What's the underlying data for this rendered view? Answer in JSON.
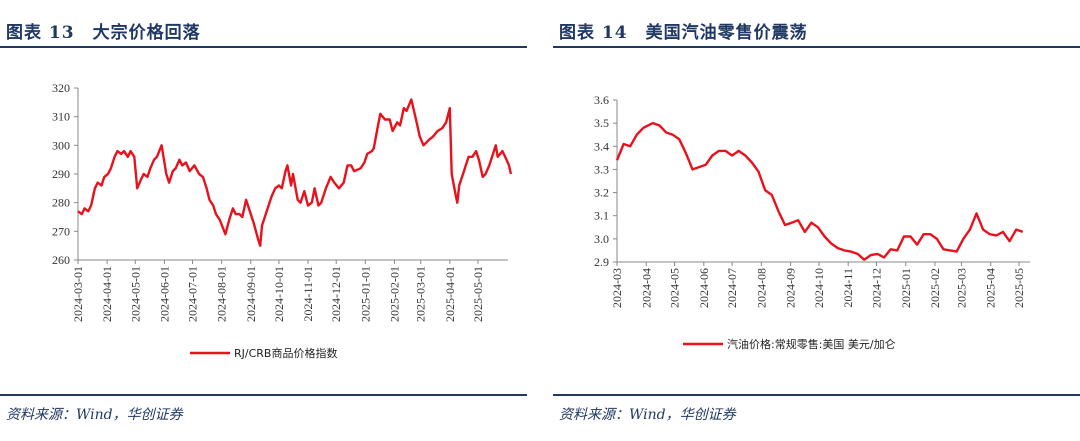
{
  "left": {
    "title": "图表 13　大宗价格回落",
    "source": "资料来源：Wind，华创证券"
  },
  "right": {
    "title": "图表 14　美国汽油零售价震荡",
    "source": "资料来源：Wind，华创证券"
  },
  "colors": {
    "line": "#e8121c",
    "title": "#1f3864"
  },
  "chart_data": [
    {
      "type": "line",
      "title": "",
      "xlabel": "",
      "ylabel": "",
      "ylim": [
        260,
        320
      ],
      "yticks": [
        260,
        270,
        280,
        290,
        300,
        310,
        320
      ],
      "xticks": [
        "2024-03-01",
        "2024-04-01",
        "2024-05-01",
        "2024-06-01",
        "2024-07-01",
        "2024-08-01",
        "2024-09-01",
        "2024-10-01",
        "2024-11-01",
        "2024-12-01",
        "2025-01-01",
        "2025-02-01",
        "2025-03-01",
        "2025-04-01",
        "2025-05-01"
      ],
      "grid": false,
      "legend": "bottom",
      "series": [
        {
          "name": "RJ/CRB商品价格指数",
          "points": [
            [
              "2024-03-01",
              277
            ],
            [
              "2024-03-05",
              276
            ],
            [
              "2024-03-08",
              278
            ],
            [
              "2024-03-12",
              277
            ],
            [
              "2024-03-15",
              279
            ],
            [
              "2024-03-19",
              285
            ],
            [
              "2024-03-22",
              287
            ],
            [
              "2024-03-26",
              286
            ],
            [
              "2024-03-29",
              289
            ],
            [
              "2024-04-02",
              290
            ],
            [
              "2024-04-05",
              292
            ],
            [
              "2024-04-09",
              296
            ],
            [
              "2024-04-12",
              298
            ],
            [
              "2024-04-16",
              297
            ],
            [
              "2024-04-19",
              298
            ],
            [
              "2024-04-23",
              296
            ],
            [
              "2024-04-26",
              298
            ],
            [
              "2024-04-30",
              296
            ],
            [
              "2024-05-03",
              285
            ],
            [
              "2024-05-07",
              288
            ],
            [
              "2024-05-10",
              290
            ],
            [
              "2024-05-14",
              289
            ],
            [
              "2024-05-17",
              292
            ],
            [
              "2024-05-21",
              295
            ],
            [
              "2024-05-24",
              296
            ],
            [
              "2024-05-29",
              300
            ],
            [
              "2024-06-03",
              290
            ],
            [
              "2024-06-06",
              287
            ],
            [
              "2024-06-10",
              291
            ],
            [
              "2024-06-13",
              292
            ],
            [
              "2024-06-17",
              295
            ],
            [
              "2024-06-20",
              293
            ],
            [
              "2024-06-24",
              294
            ],
            [
              "2024-06-28",
              291
            ],
            [
              "2024-07-03",
              293
            ],
            [
              "2024-07-08",
              290
            ],
            [
              "2024-07-12",
              289
            ],
            [
              "2024-07-16",
              285
            ],
            [
              "2024-07-19",
              281
            ],
            [
              "2024-07-23",
              279
            ],
            [
              "2024-07-26",
              276
            ],
            [
              "2024-07-30",
              274
            ],
            [
              "2024-08-05",
              269
            ],
            [
              "2024-08-09",
              274
            ],
            [
              "2024-08-13",
              278
            ],
            [
              "2024-08-16",
              276
            ],
            [
              "2024-08-20",
              276
            ],
            [
              "2024-08-23",
              275
            ],
            [
              "2024-08-27",
              281
            ],
            [
              "2024-08-30",
              278
            ],
            [
              "2024-09-04",
              273
            ],
            [
              "2024-09-09",
              267
            ],
            [
              "2024-09-11",
              265
            ],
            [
              "2024-09-13",
              272
            ],
            [
              "2024-09-18",
              277
            ],
            [
              "2024-09-23",
              282
            ],
            [
              "2024-09-27",
              285
            ],
            [
              "2024-10-01",
              286
            ],
            [
              "2024-10-04",
              285
            ],
            [
              "2024-10-08",
              291
            ],
            [
              "2024-10-10",
              293
            ],
            [
              "2024-10-14",
              286
            ],
            [
              "2024-10-16",
              290
            ],
            [
              "2024-10-21",
              281
            ],
            [
              "2024-10-24",
              280
            ],
            [
              "2024-10-28",
              284
            ],
            [
              "2024-11-01",
              279
            ],
            [
              "2024-11-05",
              280
            ],
            [
              "2024-11-08",
              285
            ],
            [
              "2024-11-12",
              279
            ],
            [
              "2024-11-15",
              280
            ],
            [
              "2024-11-20",
              285
            ],
            [
              "2024-11-25",
              289
            ],
            [
              "2024-11-29",
              287
            ],
            [
              "2024-12-04",
              285
            ],
            [
              "2024-12-09",
              287
            ],
            [
              "2024-12-13",
              293
            ],
            [
              "2024-12-17",
              293
            ],
            [
              "2024-12-20",
              291
            ],
            [
              "2024-12-27",
              292
            ],
            [
              "2024-12-31",
              294
            ],
            [
              "2025-01-03",
              297
            ],
            [
              "2025-01-08",
              298
            ],
            [
              "2025-01-10",
              299
            ],
            [
              "2025-01-14",
              306
            ],
            [
              "2025-01-17",
              311
            ],
            [
              "2025-01-22",
              309
            ],
            [
              "2025-01-27",
              309
            ],
            [
              "2025-01-30",
              305
            ],
            [
              "2025-02-04",
              308
            ],
            [
              "2025-02-07",
              307
            ],
            [
              "2025-02-11",
              313
            ],
            [
              "2025-02-14",
              312
            ],
            [
              "2025-02-19",
              316
            ],
            [
              "2025-02-24",
              309
            ],
            [
              "2025-02-28",
              303
            ],
            [
              "2025-03-04",
              300
            ],
            [
              "2025-03-10",
              302
            ],
            [
              "2025-03-14",
              303
            ],
            [
              "2025-03-19",
              305
            ],
            [
              "2025-03-24",
              306
            ],
            [
              "2025-03-28",
              308
            ],
            [
              "2025-04-01",
              313
            ],
            [
              "2025-04-03",
              290
            ],
            [
              "2025-04-07",
              283
            ],
            [
              "2025-04-09",
              280
            ],
            [
              "2025-04-11",
              286
            ],
            [
              "2025-04-15",
              290
            ],
            [
              "2025-04-21",
              296
            ],
            [
              "2025-04-25",
              296
            ],
            [
              "2025-04-29",
              298
            ],
            [
              "2025-05-02",
              295
            ],
            [
              "2025-05-06",
              289
            ],
            [
              "2025-05-09",
              290
            ],
            [
              "2025-05-13",
              293
            ],
            [
              "2025-05-16",
              296
            ],
            [
              "2025-05-20",
              300
            ],
            [
              "2025-05-22",
              296
            ],
            [
              "2025-05-27",
              298
            ],
            [
              "2025-05-30",
              296
            ],
            [
              "2025-06-03",
              293
            ],
            [
              "2025-06-05",
              290
            ]
          ]
        }
      ]
    },
    {
      "type": "line",
      "title": "",
      "xlabel": "",
      "ylabel": "",
      "ylim": [
        2.9,
        3.6
      ],
      "yticks": [
        "2.9",
        "3.0",
        "3.1",
        "3.2",
        "3.3",
        "3.4",
        "3.5",
        "3.6"
      ],
      "xticks": [
        "2024-03",
        "2024-04",
        "2024-05",
        "2024-06",
        "2024-07",
        "2024-08",
        "2024-09",
        "2024-10",
        "2024-11",
        "2024-12",
        "2025-01",
        "2025-02",
        "2025-03",
        "2025-04",
        "2025-05"
      ],
      "grid": false,
      "legend": "bottom",
      "series": [
        {
          "name": "汽油价格:常规零售:美国 美元/加仑",
          "points": [
            [
              "2024-03-01",
              3.34
            ],
            [
              "2024-03-08",
              3.41
            ],
            [
              "2024-03-15",
              3.4
            ],
            [
              "2024-03-22",
              3.45
            ],
            [
              "2024-03-29",
              3.48
            ],
            [
              "2024-04-08",
              3.5
            ],
            [
              "2024-04-15",
              3.49
            ],
            [
              "2024-04-22",
              3.46
            ],
            [
              "2024-04-29",
              3.45
            ],
            [
              "2024-05-06",
              3.43
            ],
            [
              "2024-05-13",
              3.37
            ],
            [
              "2024-05-20",
              3.3
            ],
            [
              "2024-05-27",
              3.31
            ],
            [
              "2024-06-03",
              3.32
            ],
            [
              "2024-06-10",
              3.36
            ],
            [
              "2024-06-17",
              3.38
            ],
            [
              "2024-06-24",
              3.38
            ],
            [
              "2024-07-01",
              3.36
            ],
            [
              "2024-07-08",
              3.38
            ],
            [
              "2024-07-15",
              3.36
            ],
            [
              "2024-07-22",
              3.33
            ],
            [
              "2024-07-29",
              3.29
            ],
            [
              "2024-08-05",
              3.21
            ],
            [
              "2024-08-12",
              3.19
            ],
            [
              "2024-08-19",
              3.12
            ],
            [
              "2024-08-26",
              3.06
            ],
            [
              "2024-09-02",
              3.07
            ],
            [
              "2024-09-09",
              3.08
            ],
            [
              "2024-09-16",
              3.03
            ],
            [
              "2024-09-23",
              3.07
            ],
            [
              "2024-09-30",
              3.05
            ],
            [
              "2024-10-07",
              3.01
            ],
            [
              "2024-10-14",
              2.98
            ],
            [
              "2024-10-21",
              2.96
            ],
            [
              "2024-10-28",
              2.95
            ],
            [
              "2024-11-04",
              2.945
            ],
            [
              "2024-11-11",
              2.935
            ],
            [
              "2024-11-18",
              2.91
            ],
            [
              "2024-11-25",
              2.93
            ],
            [
              "2024-12-02",
              2.935
            ],
            [
              "2024-12-09",
              2.92
            ],
            [
              "2024-12-16",
              2.955
            ],
            [
              "2024-12-23",
              2.95
            ],
            [
              "2024-12-30",
              3.01
            ],
            [
              "2025-01-06",
              3.01
            ],
            [
              "2025-01-13",
              2.975
            ],
            [
              "2025-01-20",
              3.02
            ],
            [
              "2025-01-27",
              3.02
            ],
            [
              "2025-02-03",
              3.0
            ],
            [
              "2025-02-10",
              2.955
            ],
            [
              "2025-02-17",
              2.95
            ],
            [
              "2025-02-24",
              2.945
            ],
            [
              "2025-03-03",
              3.0
            ],
            [
              "2025-03-10",
              3.04
            ],
            [
              "2025-03-17",
              3.11
            ],
            [
              "2025-03-24",
              3.04
            ],
            [
              "2025-03-31",
              3.02
            ],
            [
              "2025-04-07",
              3.015
            ],
            [
              "2025-04-14",
              3.03
            ],
            [
              "2025-04-21",
              2.99
            ],
            [
              "2025-04-28",
              3.04
            ],
            [
              "2025-05-05",
              3.03
            ]
          ]
        }
      ]
    }
  ]
}
